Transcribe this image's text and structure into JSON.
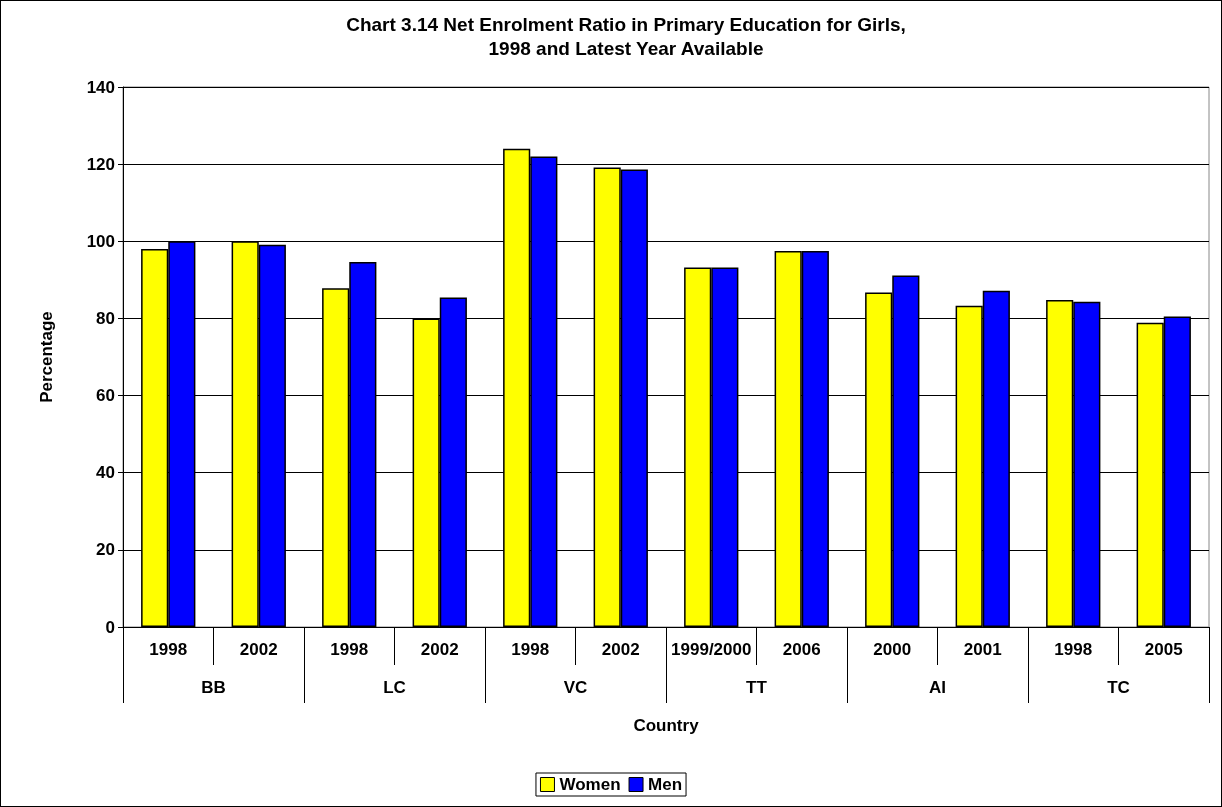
{
  "chart_data": {
    "type": "bar",
    "title": "Chart 3.14 Net Enrolment Ratio in Primary Education for Girls,\n1998 and Latest Year Available",
    "xlabel": "Country",
    "ylabel": "Percentage",
    "categories": [
      "1998",
      "2002",
      "1998",
      "2002",
      "1998",
      "2002",
      "1999/2000",
      "2006",
      "2000",
      "2001",
      "1998",
      "2005"
    ],
    "series": [
      {
        "name": "Women",
        "color": "#ffff00",
        "values": [
          98.0,
          100.0,
          87.8,
          80.0,
          124.0,
          119.1,
          93.2,
          97.5,
          86.7,
          83.3,
          84.8,
          78.9
        ]
      },
      {
        "name": "Men",
        "color": "#0000ff",
        "values": [
          100.0,
          99.1,
          94.6,
          85.4,
          122.0,
          118.6,
          93.2,
          97.5,
          91.1,
          87.2,
          84.3,
          80.5
        ]
      }
    ],
    "annotations": [
      "BB",
      "LC",
      "VC",
      "TT",
      "AI",
      "TC"
    ],
    "ylim": [
      0,
      140
    ],
    "yticks": [
      0,
      20,
      40,
      60,
      80,
      100,
      120,
      140
    ],
    "grid": "y",
    "legend": "bottom"
  }
}
